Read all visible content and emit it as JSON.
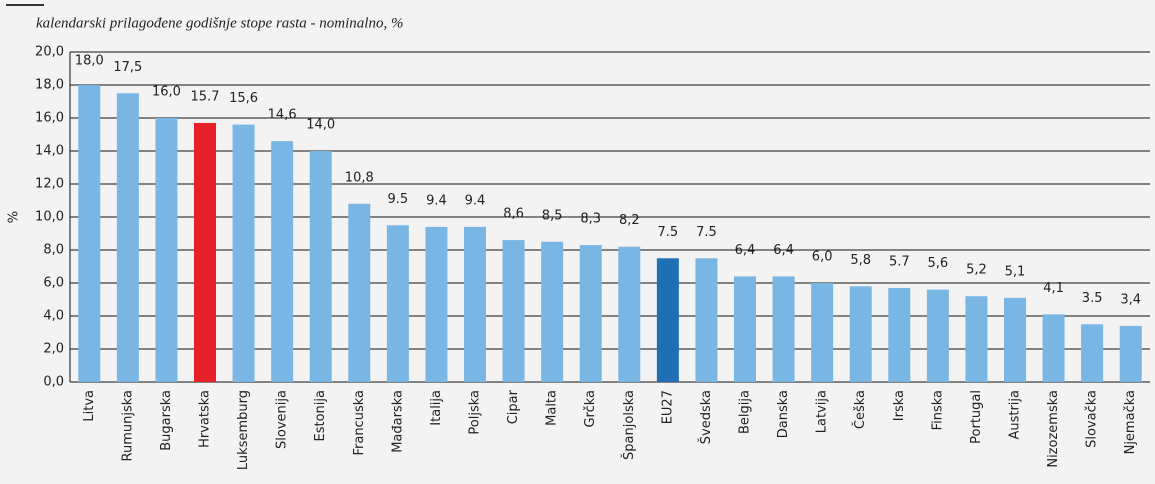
{
  "chart_data": {
    "type": "bar",
    "subtitle": "kalendarski prilagođene godišnje stope rasta - nominalno, %",
    "y_label": "%",
    "categories": [
      "Litva",
      "Rumunjska",
      "Bugarska",
      "Hrvatska",
      "Luksemburg",
      "Slovenija",
      "Estonija",
      "Francuska",
      "Mađarska",
      "Italija",
      "Poljska",
      "Cipar",
      "Malta",
      "Grčka",
      "Španjolska",
      "EU27",
      "Švedska",
      "Belgija",
      "Danska",
      "Latvija",
      "Češka",
      "Irska",
      "Finska",
      "Portugal",
      "Austrija",
      "Nizozemska",
      "Slovačka",
      "Njemačka"
    ],
    "values": [
      18.0,
      17.5,
      16.0,
      15.7,
      15.6,
      14.6,
      14.0,
      10.8,
      9.5,
      9.4,
      9.4,
      8.6,
      8.5,
      8.3,
      8.2,
      7.5,
      7.5,
      6.4,
      6.4,
      6.0,
      5.8,
      5.7,
      5.6,
      5.2,
      5.1,
      4.1,
      3.5,
      3.4
    ],
    "value_labels": [
      "18,0",
      "17,5",
      "16,0",
      "15.7",
      "15,6",
      "14,6",
      "14,0",
      "10,8",
      "9.5",
      "9.4",
      "9.4",
      "8,6",
      "8,5",
      "8,3",
      "8,2",
      "7.5",
      "7.5",
      "6,4",
      "6,4",
      "6,0",
      "5,8",
      "5.7",
      "5,6",
      "5,2",
      "5,1",
      "4,1",
      "3.5",
      "3,4"
    ],
    "colors": [
      "#7ab6e4",
      "#7ab6e4",
      "#7ab6e4",
      "#e8202a",
      "#7ab6e4",
      "#7ab6e4",
      "#7ab6e4",
      "#7ab6e4",
      "#7ab6e4",
      "#7ab6e4",
      "#7ab6e4",
      "#7ab6e4",
      "#7ab6e4",
      "#7ab6e4",
      "#7ab6e4",
      "#1e6fb4",
      "#7ab6e4",
      "#7ab6e4",
      "#7ab6e4",
      "#7ab6e4",
      "#7ab6e4",
      "#7ab6e4",
      "#7ab6e4",
      "#7ab6e4",
      "#7ab6e4",
      "#7ab6e4",
      "#7ab6e4",
      "#7ab6e4"
    ],
    "ylim": [
      0,
      20
    ],
    "yticks": [
      {
        "value": 0,
        "label": "0,0"
      },
      {
        "value": 2,
        "label": "2,0"
      },
      {
        "value": 4,
        "label": "4,0"
      },
      {
        "value": 6,
        "label": "6,0"
      },
      {
        "value": 8,
        "label": "8,0"
      },
      {
        "value": 10,
        "label": "10,0"
      },
      {
        "value": 12,
        "label": "12,0"
      },
      {
        "value": 14,
        "label": "14,0"
      },
      {
        "value": 16,
        "label": "16,0"
      },
      {
        "value": 18,
        "label": "18,0"
      },
      {
        "value": 20,
        "label": "20,0"
      }
    ],
    "grid": true
  }
}
